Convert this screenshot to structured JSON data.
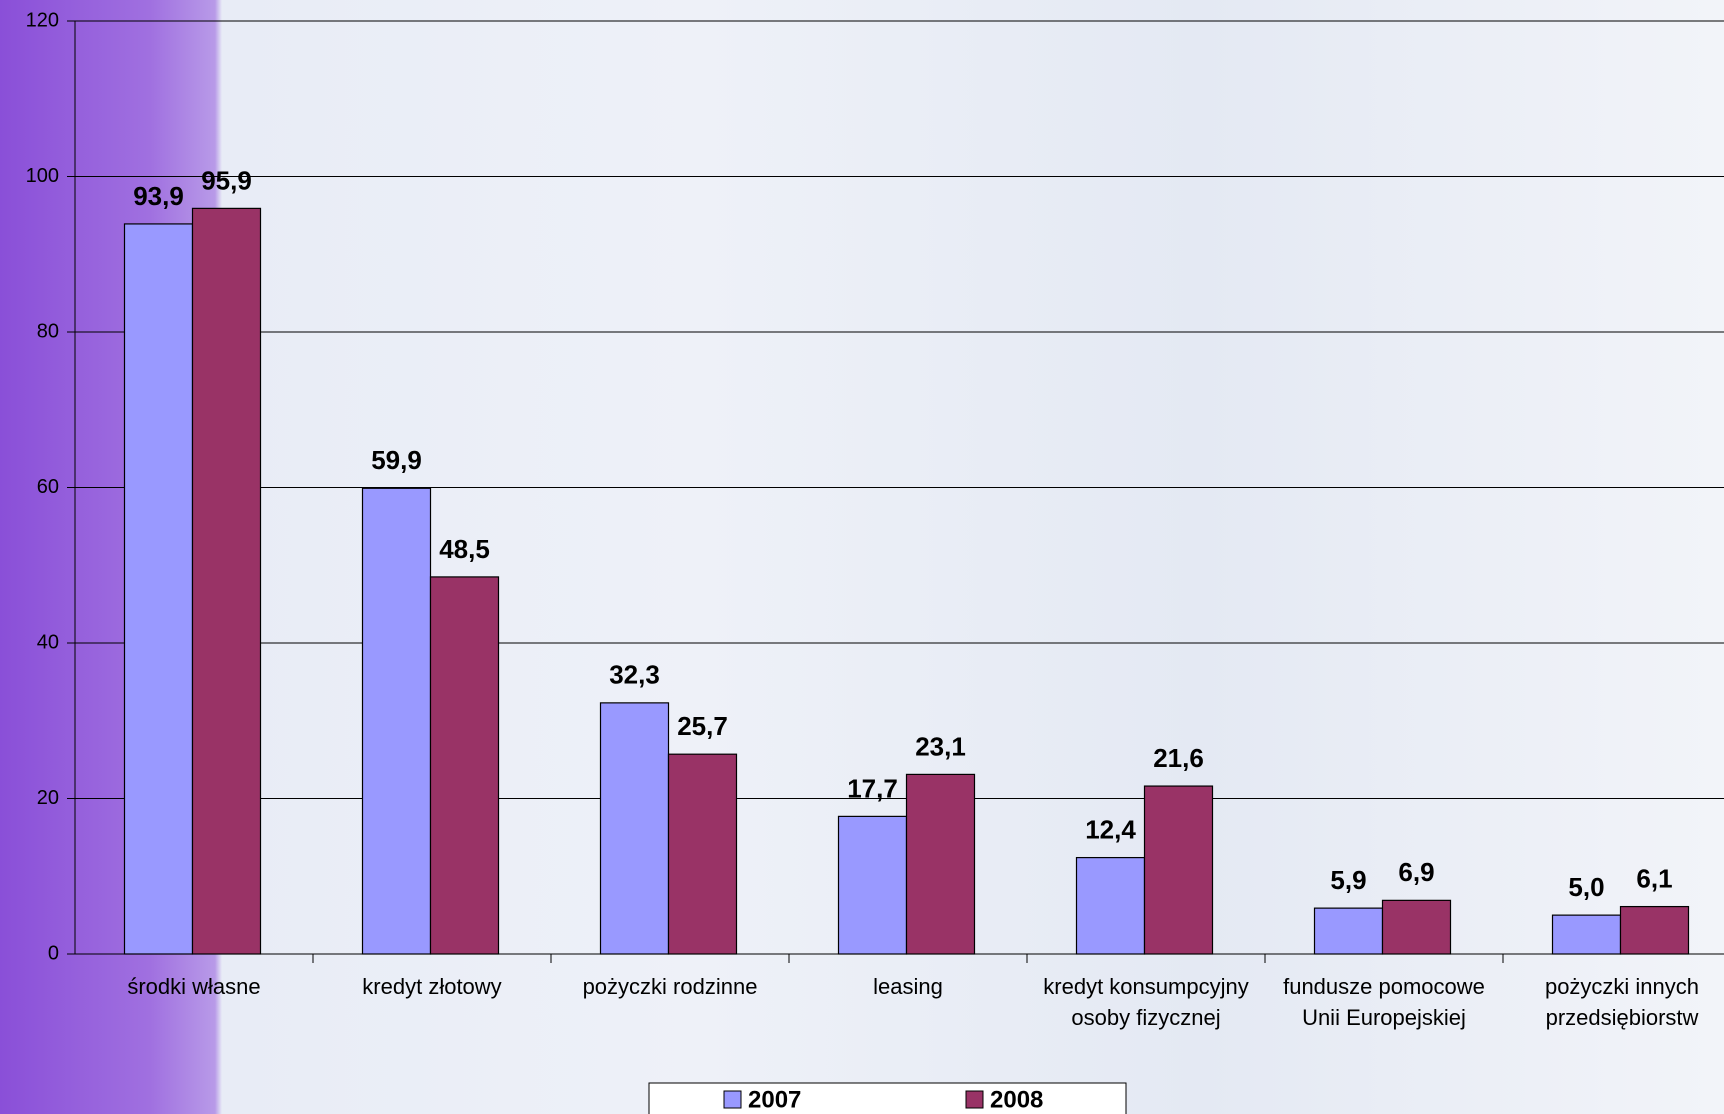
{
  "chart_data": {
    "type": "bar",
    "categories": [
      "środki własne",
      "kredyt złotowy",
      "pożyczki rodzinne",
      "leasing",
      "kredyt konsumpcyjny osoby fizycznej",
      "fundusze pomocowe Unii Europejskiej",
      "pożyczki innych przedsiębiorstw"
    ],
    "series": [
      {
        "name": "2007",
        "color": "#9999ff",
        "values": [
          93.9,
          59.9,
          32.3,
          17.7,
          12.4,
          5.9,
          5.0
        ],
        "value_labels": [
          "93,9",
          "59,9",
          "32,3",
          "17,7",
          "12,4",
          "5,9",
          "5,0"
        ]
      },
      {
        "name": "2008",
        "color": "#993366",
        "values": [
          95.9,
          48.5,
          25.7,
          23.1,
          21.6,
          6.9,
          6.1
        ],
        "value_labels": [
          "95,9",
          "48,5",
          "25,7",
          "23,1",
          "21,6",
          "6,9",
          "6,1"
        ]
      }
    ],
    "ylim": [
      0,
      120
    ],
    "yticks": [
      0,
      20,
      40,
      60,
      80,
      100,
      120
    ],
    "grid": true,
    "legend": "bottom"
  }
}
